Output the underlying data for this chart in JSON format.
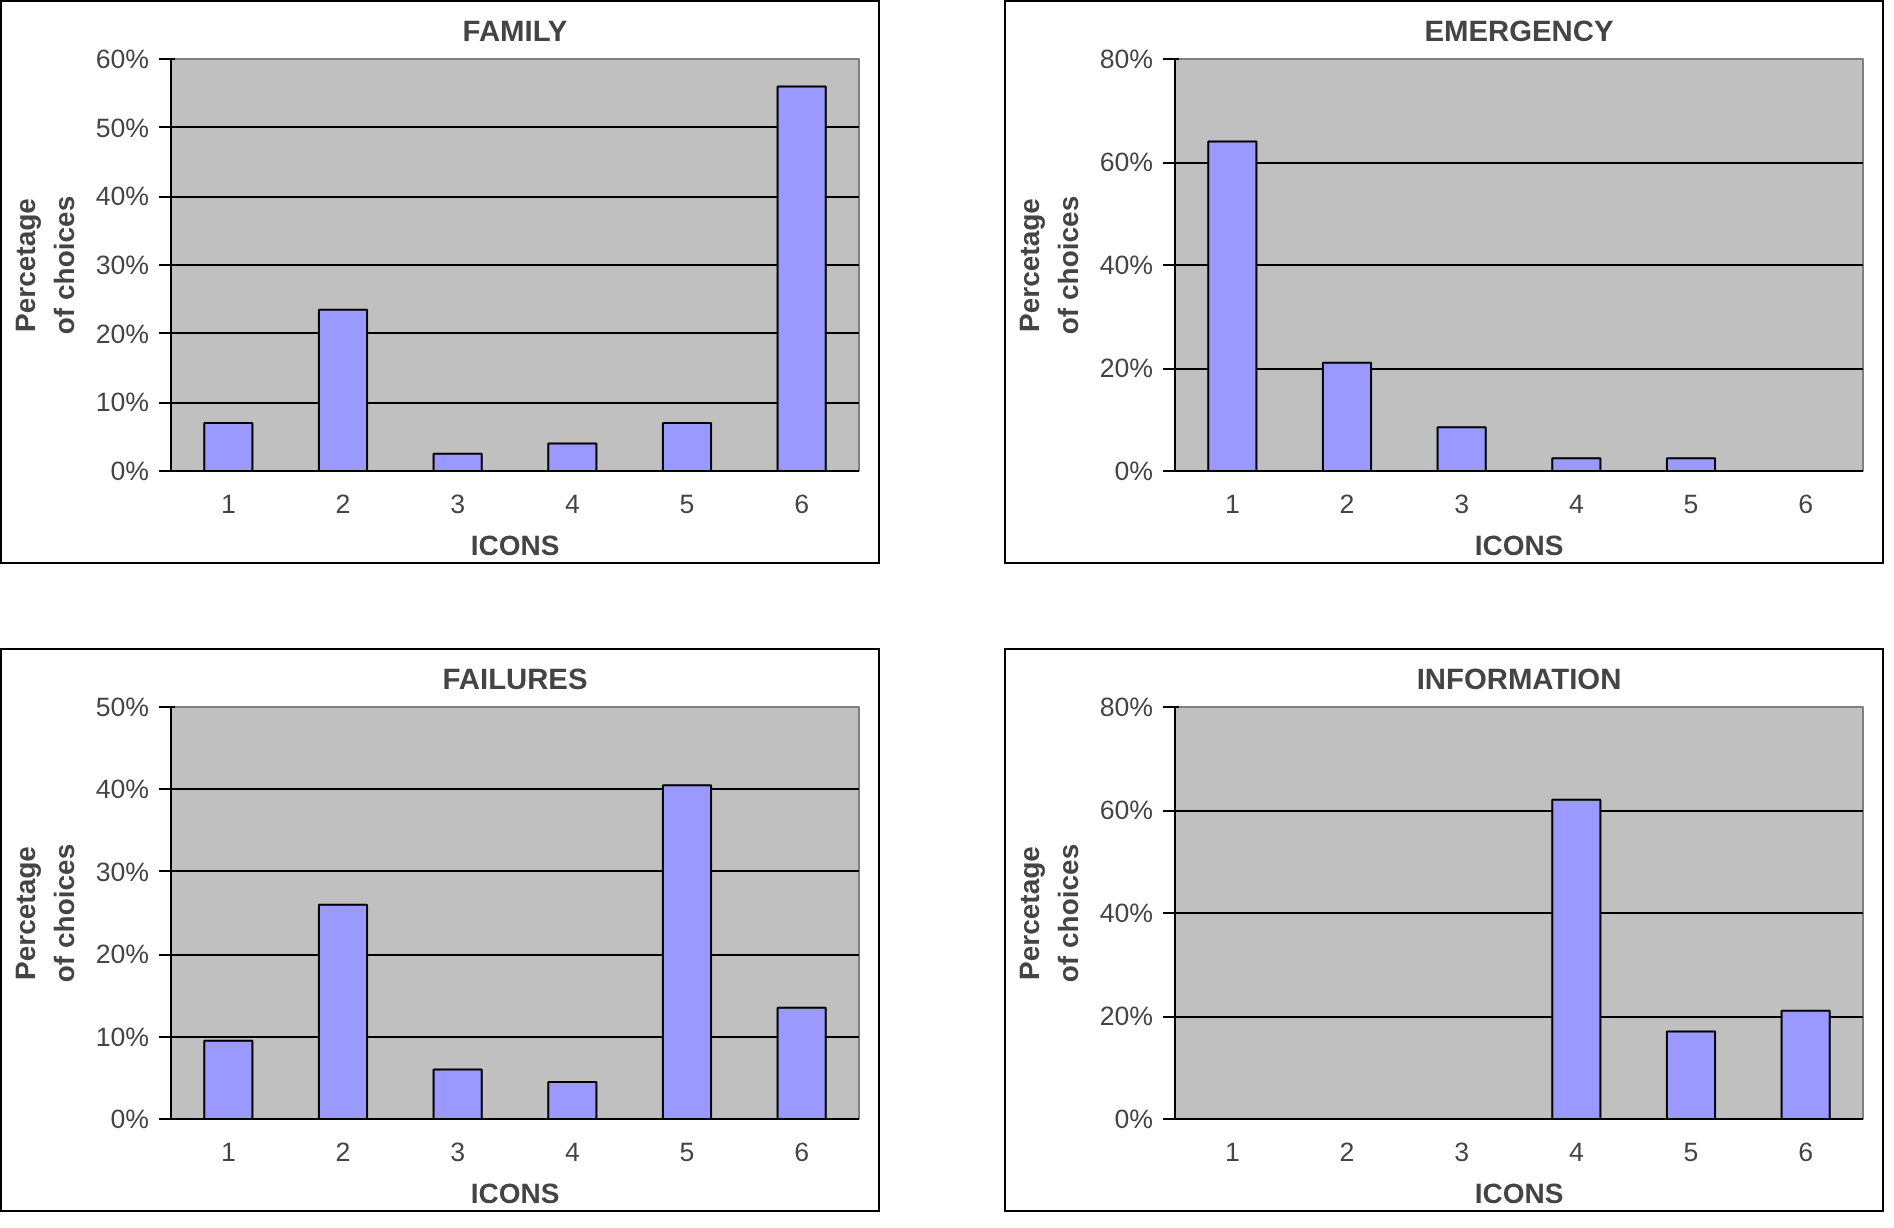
{
  "chart_data": [
    {
      "type": "bar",
      "title": "FAMILY",
      "xlabel": "ICONS",
      "ylabel": "Percetage\nof choices",
      "categories": [
        "1",
        "2",
        "3",
        "4",
        "5",
        "6"
      ],
      "values": [
        7,
        23.5,
        2.5,
        4,
        7,
        56
      ],
      "color": "#9999ff",
      "ylim": [
        0,
        60
      ],
      "yticks": [
        {
          "value": 0,
          "label": "0%"
        },
        {
          "value": 10,
          "label": "10%"
        },
        {
          "value": 20,
          "label": "20%"
        },
        {
          "value": 30,
          "label": "30%"
        },
        {
          "value": 40,
          "label": "40%"
        },
        {
          "value": 50,
          "label": "50%"
        },
        {
          "value": 60,
          "label": "60%"
        }
      ],
      "grid": "y"
    },
    {
      "type": "bar",
      "title": "EMERGENCY",
      "xlabel": "ICONS",
      "ylabel": "Percetage\nof choices",
      "categories": [
        "1",
        "2",
        "3",
        "4",
        "5",
        "6"
      ],
      "values": [
        64,
        21,
        8.5,
        2.5,
        2.5,
        0
      ],
      "color": "#9999ff",
      "ylim": [
        0,
        80
      ],
      "yticks": [
        {
          "value": 0,
          "label": "0%"
        },
        {
          "value": 20,
          "label": "20%"
        },
        {
          "value": 40,
          "label": "40%"
        },
        {
          "value": 60,
          "label": "60%"
        },
        {
          "value": 80,
          "label": "80%"
        }
      ],
      "grid": "y"
    },
    {
      "type": "bar",
      "title": "FAILURES",
      "xlabel": "ICONS",
      "ylabel": "Percetage\nof choices",
      "categories": [
        "1",
        "2",
        "3",
        "4",
        "5",
        "6"
      ],
      "values": [
        9.5,
        26,
        6,
        4.5,
        40.5,
        13.5
      ],
      "color": "#9999ff",
      "ylim": [
        0,
        50
      ],
      "yticks": [
        {
          "value": 0,
          "label": "0%"
        },
        {
          "value": 10,
          "label": "10%"
        },
        {
          "value": 20,
          "label": "20%"
        },
        {
          "value": 30,
          "label": "30%"
        },
        {
          "value": 40,
          "label": "40%"
        },
        {
          "value": 50,
          "label": "50%"
        }
      ],
      "grid": "y"
    },
    {
      "type": "bar",
      "title": "INFORMATION",
      "xlabel": "ICONS",
      "ylabel": "Percetage\nof choices",
      "categories": [
        "1",
        "2",
        "3",
        "4",
        "5",
        "6"
      ],
      "values": [
        0,
        0,
        0,
        62,
        17,
        21
      ],
      "color": "#9999ff",
      "ylim": [
        0,
        80
      ],
      "yticks": [
        {
          "value": 0,
          "label": "0%"
        },
        {
          "value": 20,
          "label": "20%"
        },
        {
          "value": 40,
          "label": "40%"
        },
        {
          "value": 60,
          "label": "60%"
        },
        {
          "value": 80,
          "label": "80%"
        }
      ],
      "grid": "y"
    }
  ]
}
